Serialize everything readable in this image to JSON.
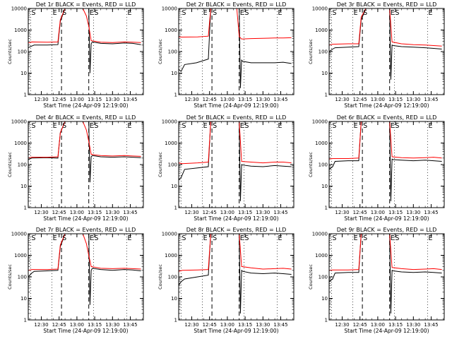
{
  "chart_data": {
    "type": "line",
    "layout": "3x3 grid",
    "y_scale": "log",
    "ylim": [
      1,
      10000
    ],
    "ylabel": "Counts/sec",
    "xlabel": "Start Time (24-Apr-09 12:19:00)",
    "x_ticks": [
      "12:30",
      "12:45",
      "13:00",
      "13:15",
      "13:30",
      "13:45"
    ],
    "y_ticks": [
      "1",
      "10",
      "100",
      "1000",
      "10000"
    ],
    "xlim": [
      "12:19",
      "13:56"
    ],
    "markers": [
      {
        "label": "S",
        "time": "12:47",
        "style": "dashed"
      },
      {
        "label": "E",
        "time": "13:10",
        "style": "dashed"
      },
      {
        "label": "S",
        "time": "12:21",
        "style": "dotted"
      },
      {
        "label": "E",
        "time": "12:39",
        "style": "dotted"
      },
      {
        "label": "S",
        "time": "13:14",
        "style": "dotted"
      },
      {
        "label": "E",
        "time": "13:42",
        "style": "dotted"
      }
    ],
    "series_colors": {
      "events": "#000000",
      "lld": "#ff0000"
    },
    "panels": [
      {
        "title": "Det 1r BLACK = Events, RED = LLD",
        "series": [
          {
            "color": "#000000",
            "x": [
              "12:19",
              "12:22",
              "12:24",
              "12:35",
              "12:44",
              "12:46",
              "12:50",
              "13:00",
              "13:04",
              "13:10",
              "13:11",
              "13:12",
              "13:13",
              "13:20",
              "13:30",
              "13:40",
              "13:47",
              "13:54"
            ],
            "y": [
              150,
              180,
              200,
              200,
              210,
              2500,
              10000,
              10000,
              10000,
              10000,
              10,
              230,
              280,
              240,
              230,
              250,
              240,
              210
            ]
          },
          {
            "color": "#ff0000",
            "x": [
              "12:19",
              "12:22",
              "12:35",
              "12:44",
              "12:46",
              "12:50",
              "13:00",
              "13:05",
              "13:08",
              "13:10",
              "13:12",
              "13:15",
              "13:20",
              "13:30",
              "13:40",
              "13:47",
              "13:54"
            ],
            "y": [
              250,
              280,
              270,
              280,
              3000,
              10000,
              10000,
              10000,
              4500,
              1500,
              320,
              300,
              270,
              260,
              280,
              270,
              260
            ]
          }
        ]
      },
      {
        "title": "Det 2r BLACK = Events, RED = LLD",
        "series": [
          {
            "color": "#000000",
            "x": [
              "12:19",
              "12:21",
              "12:24",
              "12:34",
              "12:44",
              "12:46",
              "13:00",
              "13:10",
              "13:11",
              "13:12",
              "13:13",
              "13:20",
              "13:30",
              "13:40",
              "13:47",
              "13:54"
            ],
            "y": [
              15,
              12,
              25,
              30,
              45,
              10000,
              10000,
              10000,
              2,
              40,
              35,
              30,
              30,
              30,
              32,
              28
            ]
          },
          {
            "color": "#ff0000",
            "x": [
              "12:19",
              "12:22",
              "12:35",
              "12:44",
              "12:46",
              "13:00",
              "13:08",
              "13:10",
              "13:12",
              "13:20",
              "13:30",
              "13:40",
              "13:47",
              "13:54"
            ],
            "y": [
              480,
              470,
              480,
              520,
              10000,
              10000,
              10000,
              500,
              380,
              400,
              410,
              430,
              430,
              440
            ]
          }
        ]
      },
      {
        "title": "Det 3r BLACK = Events, RED = LLD",
        "series": [
          {
            "color": "#000000",
            "x": [
              "12:19",
              "12:22",
              "12:24",
              "12:35",
              "12:44",
              "12:46",
              "12:50",
              "13:00",
              "13:10",
              "13:11",
              "13:12",
              "13:13",
              "13:20",
              "13:30",
              "13:40",
              "13:47",
              "13:54"
            ],
            "y": [
              100,
              130,
              150,
              160,
              170,
              3000,
              10000,
              10000,
              10000,
              5,
              200,
              190,
              170,
              160,
              150,
              140,
              130
            ]
          },
          {
            "color": "#ff0000",
            "x": [
              "12:19",
              "12:22",
              "12:35",
              "12:44",
              "12:46",
              "12:50",
              "13:00",
              "13:10",
              "13:12",
              "13:20",
              "13:30",
              "13:40",
              "13:47",
              "13:54"
            ],
            "y": [
              200,
              220,
              230,
              230,
              4000,
              10000,
              10000,
              10000,
              280,
              230,
              210,
              200,
              190,
              180
            ]
          }
        ]
      },
      {
        "title": "Det 4r BLACK = Events, RED = LLD",
        "series": [
          {
            "color": "#000000",
            "x": [
              "12:19",
              "12:22",
              "12:35",
              "12:44",
              "12:46",
              "12:50",
              "13:00",
              "13:10",
              "13:11",
              "13:12",
              "13:13",
              "13:20",
              "13:30",
              "13:40",
              "13:47",
              "13:54"
            ],
            "y": [
              170,
              200,
              210,
              200,
              3000,
              10000,
              10000,
              10000,
              15,
              230,
              260,
              230,
              220,
              230,
              220,
              210
            ]
          },
          {
            "color": "#ff0000",
            "x": [
              "12:19",
              "12:22",
              "12:35",
              "12:44",
              "12:46",
              "12:50",
              "13:00",
              "13:05",
              "13:08",
              "13:10",
              "13:12",
              "13:15",
              "13:20",
              "13:30",
              "13:40",
              "13:47",
              "13:54"
            ],
            "y": [
              200,
              220,
              220,
              230,
              3000,
              10000,
              10000,
              10000,
              4000,
              1200,
              300,
              280,
              260,
              250,
              260,
              250,
              240
            ]
          }
        ]
      },
      {
        "title": "Det 5r BLACK = Events, RED = LLD",
        "series": [
          {
            "color": "#000000",
            "x": [
              "12:19",
              "12:21",
              "12:24",
              "12:35",
              "12:44",
              "12:46",
              "13:00",
              "13:10",
              "13:11",
              "13:12",
              "13:13",
              "13:20",
              "13:30",
              "13:40",
              "13:47",
              "13:54"
            ],
            "y": [
              20,
              25,
              60,
              70,
              80,
              10000,
              10000,
              10000,
              2,
              100,
              95,
              85,
              80,
              90,
              85,
              80
            ]
          },
          {
            "color": "#ff0000",
            "x": [
              "12:19",
              "12:22",
              "12:35",
              "12:44",
              "12:46",
              "13:00",
              "13:10",
              "13:12",
              "13:20",
              "13:30",
              "13:40",
              "13:47",
              "13:54"
            ],
            "y": [
              120,
              110,
              120,
              130,
              10000,
              10000,
              10000,
              140,
              130,
              120,
              130,
              130,
              120
            ]
          }
        ]
      },
      {
        "title": "Det 6r BLACK = Events, RED = LLD",
        "series": [
          {
            "color": "#000000",
            "x": [
              "12:19",
              "12:22",
              "12:24",
              "12:35",
              "12:44",
              "12:46",
              "13:00",
              "13:10",
              "13:11",
              "13:12",
              "13:13",
              "13:20",
              "13:30",
              "13:40",
              "13:47",
              "13:54"
            ],
            "y": [
              60,
              80,
              140,
              150,
              150,
              10000,
              10000,
              10000,
              2,
              180,
              170,
              160,
              150,
              160,
              150,
              140
            ]
          },
          {
            "color": "#ff0000",
            "x": [
              "12:19",
              "12:22",
              "12:35",
              "12:44",
              "12:46",
              "13:00",
              "13:10",
              "13:12",
              "13:20",
              "13:30",
              "13:40",
              "13:47",
              "13:54"
            ],
            "y": [
              180,
              190,
              190,
              200,
              10000,
              10000,
              10000,
              230,
              210,
              200,
              210,
              220,
              200
            ]
          }
        ]
      },
      {
        "title": "Det 7r BLACK = Events, RED = LLD",
        "series": [
          {
            "color": "#000000",
            "x": [
              "12:19",
              "12:22",
              "12:24",
              "12:35",
              "12:44",
              "12:46",
              "12:50",
              "13:00",
              "13:10",
              "13:11",
              "13:12",
              "13:13",
              "13:20",
              "13:30",
              "13:40",
              "13:47",
              "13:54"
            ],
            "y": [
              100,
              150,
              180,
              190,
              200,
              2500,
              10000,
              10000,
              10000,
              5,
              200,
              250,
              220,
              200,
              220,
              210,
              190
            ]
          },
          {
            "color": "#ff0000",
            "x": [
              "12:19",
              "12:22",
              "12:35",
              "12:44",
              "12:46",
              "12:50",
              "13:00",
              "13:05",
              "13:08",
              "13:10",
              "13:12",
              "13:15",
              "13:20",
              "13:30",
              "13:40",
              "13:47",
              "13:54"
            ],
            "y": [
              200,
              220,
              220,
              230,
              3000,
              10000,
              10000,
              10000,
              3500,
              1000,
              300,
              280,
              250,
              240,
              250,
              240,
              230
            ]
          }
        ]
      },
      {
        "title": "Det 8r BLACK = Events, RED = LLD",
        "series": [
          {
            "color": "#000000",
            "x": [
              "12:19",
              "12:21",
              "12:24",
              "12:35",
              "12:44",
              "12:46",
              "13:00",
              "13:10",
              "13:11",
              "13:12",
              "13:13",
              "13:20",
              "13:30",
              "13:40",
              "13:47",
              "13:54"
            ],
            "y": [
              40,
              60,
              80,
              100,
              120,
              10000,
              10000,
              10000,
              2,
              200,
              180,
              150,
              140,
              150,
              140,
              130
            ]
          },
          {
            "color": "#ff0000",
            "x": [
              "12:19",
              "12:22",
              "12:35",
              "12:44",
              "12:46",
              "13:00",
              "13:10",
              "13:12",
              "13:20",
              "13:30",
              "13:40",
              "13:47",
              "13:54"
            ],
            "y": [
              180,
              200,
              210,
              220,
              10000,
              10000,
              10000,
              300,
              260,
              230,
              240,
              250,
              230
            ]
          }
        ]
      },
      {
        "title": "Det 9r BLACK = Events, RED = LLD",
        "series": [
          {
            "color": "#000000",
            "x": [
              "12:19",
              "12:22",
              "12:24",
              "12:35",
              "12:44",
              "12:46",
              "13:00",
              "13:10",
              "13:11",
              "13:12",
              "13:13",
              "13:20",
              "13:30",
              "13:40",
              "13:47",
              "13:54"
            ],
            "y": [
              60,
              80,
              150,
              160,
              160,
              10000,
              10000,
              10000,
              2,
              200,
              190,
              170,
              160,
              170,
              160,
              150
            ]
          },
          {
            "color": "#ff0000",
            "x": [
              "12:19",
              "12:22",
              "12:35",
              "12:44",
              "12:46",
              "13:00",
              "13:10",
              "13:12",
              "13:20",
              "13:30",
              "13:40",
              "13:47",
              "13:54"
            ],
            "y": [
              200,
              210,
              210,
              220,
              10000,
              10000,
              10000,
              270,
              240,
              220,
              230,
              240,
              220
            ]
          }
        ]
      }
    ]
  }
}
